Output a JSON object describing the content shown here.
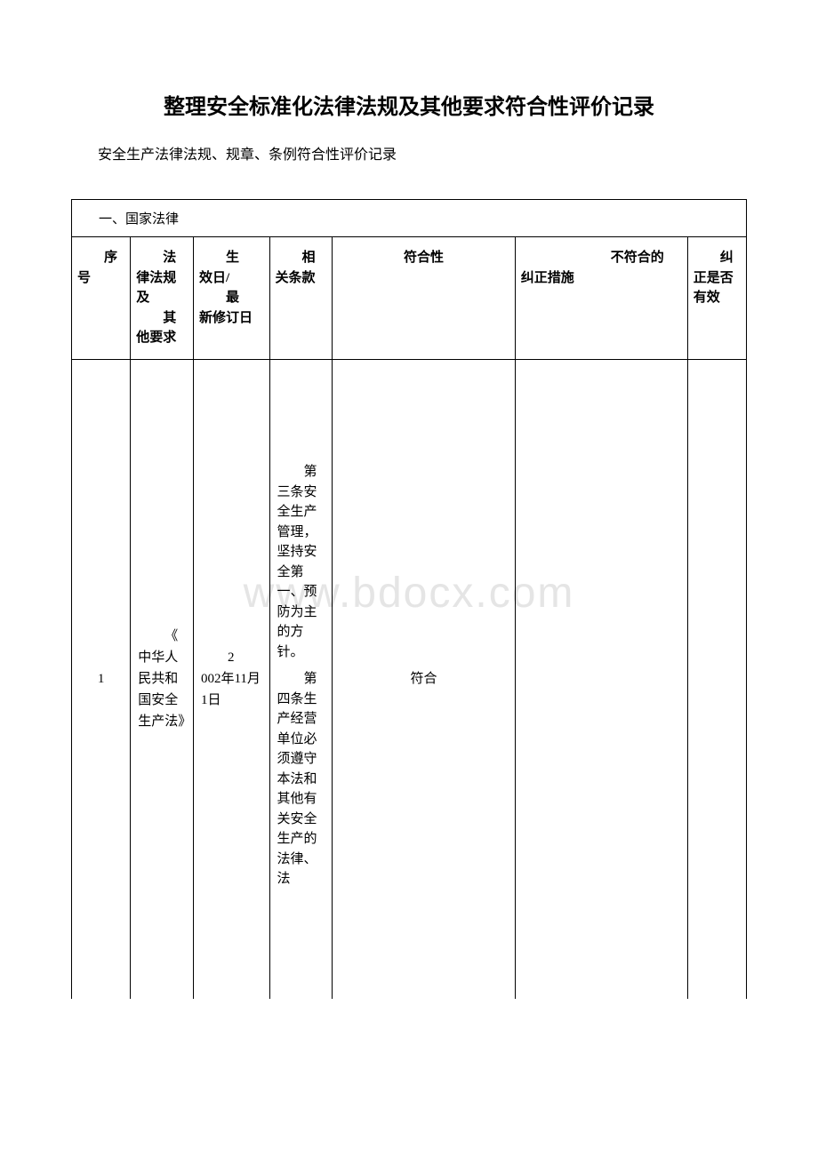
{
  "title": "整理安全标准化法律法规及其他要求符合性评价记录",
  "subtitle": "安全生产法律法规、规章、条例符合性评价记录",
  "watermark": "www.bdocx.com",
  "table": {
    "section_header": "一、国家法律",
    "columns": {
      "seq": "序号",
      "name_line1": "法",
      "name_line2": "律法规及",
      "name_line3": "其",
      "name_line4": "他要求",
      "date_line1": "生",
      "date_line2": "效日/",
      "date_line3": "最",
      "date_line4": "新修订日",
      "clause_line1": "相",
      "clause_line2": "关条款",
      "compliance": "符合性",
      "measure_line1": "不符合的",
      "measure_line2": "纠正措施",
      "effective_line1": "纠",
      "effective_line2": "正是否有效"
    },
    "rows": [
      {
        "seq": "1",
        "name_indent": "《",
        "name_rest": "中华人民共和国安全生产法》",
        "date_indent": "2",
        "date_rest": "002年11月1日",
        "clause_p1_indent": "第",
        "clause_p1_rest": "三条安全生产管理，坚持安全第一、预防为主的方针。",
        "clause_p2_indent": "第",
        "clause_p2_rest": "四条生产经营单位必须遵守本法和其他有关安全生产的法律、法",
        "compliance": "符合",
        "measure": "",
        "effective": ""
      }
    ]
  },
  "styling": {
    "font_family": "SimSun",
    "title_fontsize": 24,
    "subtitle_fontsize": 16,
    "table_fontsize": 15,
    "border_color": "#000000",
    "text_color": "#000000",
    "background_color": "#ffffff",
    "watermark_color": "#e5e5e5",
    "watermark_fontsize": 48,
    "column_widths": {
      "seq": 55,
      "name": 60,
      "date": 75,
      "clause": 60,
      "compliance": 180,
      "measure": 170,
      "effective": 55
    }
  }
}
